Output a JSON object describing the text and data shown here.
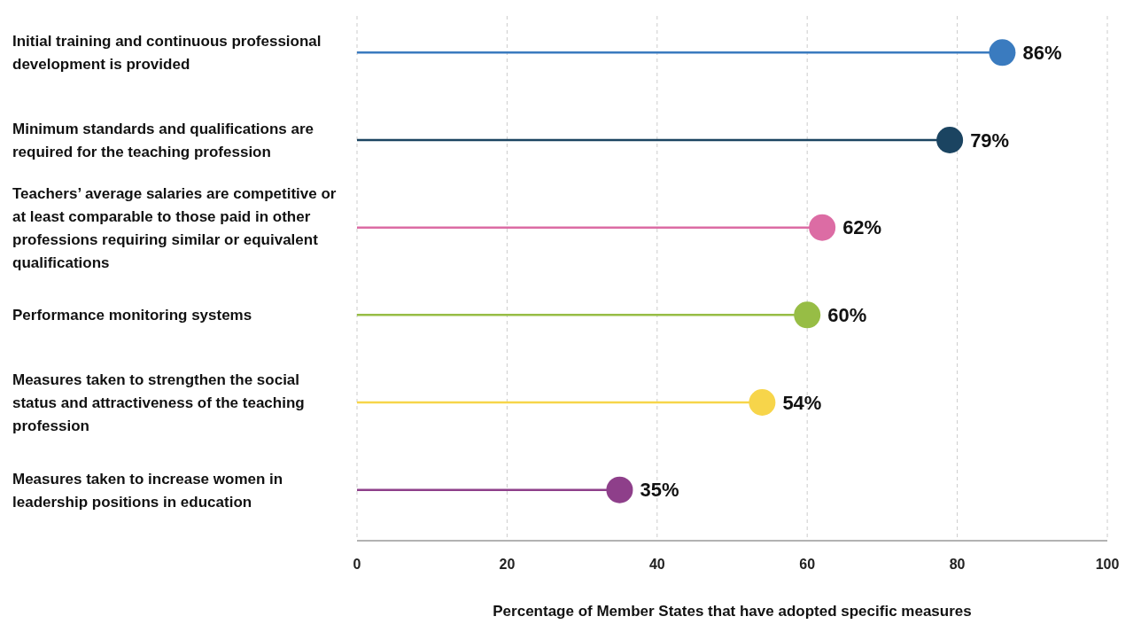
{
  "chart_data": {
    "type": "lollipop",
    "orientation": "horizontal",
    "xlabel": "Percentage of Member States that have adopted specific measures",
    "categories": [
      "Initial training and continuous professional development is provided",
      "Minimum standards and qualifications are required for the teaching profession",
      "Teachers’ average salaries are competitive or at least comparable to those paid in other professions requiring similar or equivalent qualifications",
      "Performance monitoring systems",
      "Measures taken to strengthen the social status and attractiveness of the teaching profession",
      "Measures taken to increase women in leadership positions in education"
    ],
    "values": [
      86,
      79,
      62,
      60,
      54,
      35
    ],
    "colors": [
      "#3a7bbf",
      "#1b4461",
      "#dc6ca4",
      "#97bd45",
      "#f7d54a",
      "#8e3f8a"
    ],
    "value_labels": [
      "86%",
      "79%",
      "62%",
      "60%",
      "54%",
      "35%"
    ],
    "xlim": [
      0,
      100
    ],
    "xticks": [
      0,
      20,
      40,
      60,
      80,
      100
    ],
    "grid": "x",
    "marker": "circle"
  }
}
